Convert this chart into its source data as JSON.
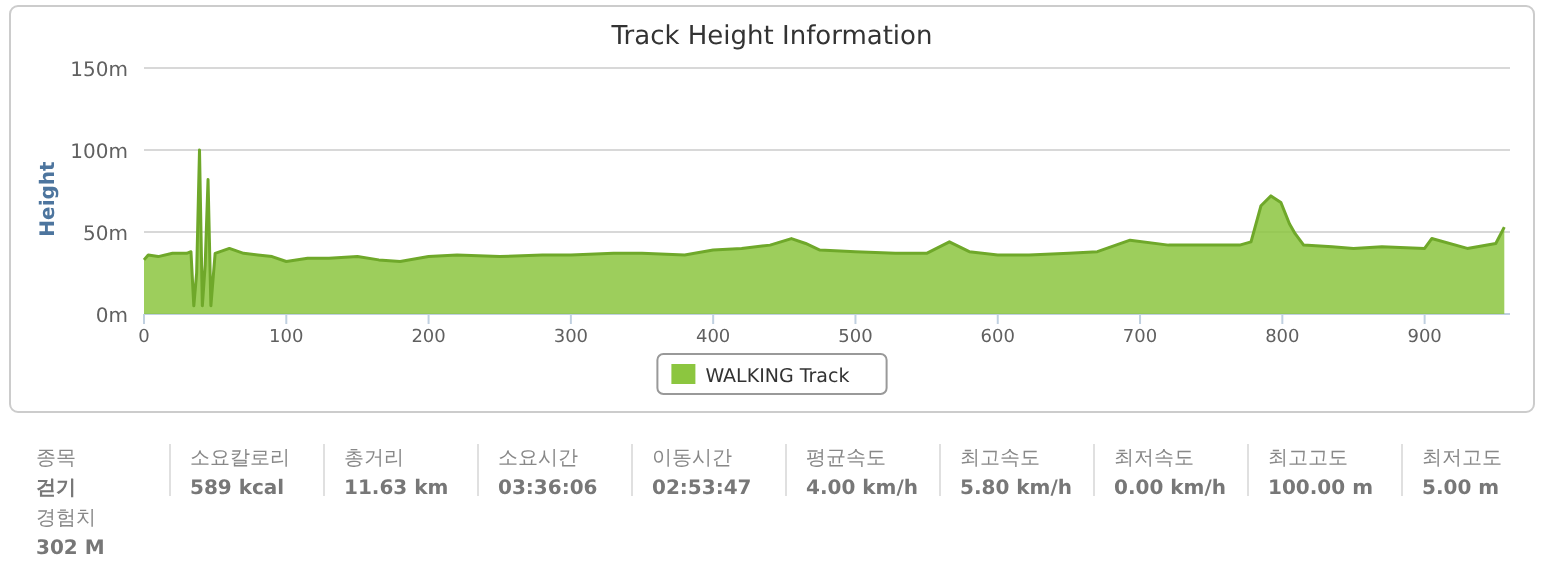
{
  "chart_data": {
    "type": "area",
    "title": "Track Height Information",
    "ylabel": "Height",
    "x": [
      0,
      3,
      10,
      20,
      30,
      33,
      35,
      37,
      39,
      41,
      43,
      45,
      47,
      50,
      60,
      70,
      80,
      90,
      100,
      115,
      130,
      150,
      165,
      180,
      200,
      220,
      250,
      280,
      300,
      330,
      350,
      380,
      400,
      420,
      440,
      455,
      465,
      475,
      500,
      528,
      550,
      566,
      580,
      600,
      622,
      650,
      670,
      693,
      720,
      750,
      770,
      778,
      785,
      792,
      799,
      805,
      809,
      815,
      835,
      850,
      870,
      900,
      905,
      930,
      950,
      956
    ],
    "series": [
      {
        "name": "WALKING Track",
        "color": "#8cc63f",
        "values": [
          33,
          36,
          35,
          37,
          37,
          38,
          5,
          25,
          100,
          5,
          30,
          82,
          5,
          37,
          40,
          37,
          36,
          35,
          32,
          34,
          34,
          35,
          33,
          32,
          35,
          36,
          35,
          36,
          36,
          37,
          37,
          36,
          39,
          40,
          42,
          46,
          43,
          39,
          38,
          37,
          37,
          44,
          38,
          36,
          36,
          37,
          38,
          45,
          42,
          42,
          42,
          44,
          66,
          72,
          68,
          55,
          49,
          42,
          41,
          40,
          41,
          40,
          46,
          40,
          43,
          53
        ]
      }
    ],
    "xlim": [
      0,
      960
    ],
    "xticks": [
      0,
      100,
      200,
      300,
      400,
      500,
      600,
      700,
      800,
      900
    ],
    "ylim": [
      0,
      150
    ],
    "yticks": [
      {
        "value": 0,
        "label": "0m"
      },
      {
        "value": 50,
        "label": "50m"
      },
      {
        "value": 100,
        "label": "100m"
      },
      {
        "value": 150,
        "label": "150m"
      }
    ],
    "grid": "y",
    "legend": "bottom",
    "annotations": [
      "종목",
      "걷기",
      "소요칼로리",
      "589 kcal",
      "총거리",
      "11.63 km",
      "소요시간",
      "03:36:06",
      "이동시간",
      "02:53:47",
      "평균속도",
      "4.00 km/h",
      "최고속도",
      "5.80 km/h",
      "최저속도",
      "0.00 km/h",
      "최고고도",
      "100.00 m",
      "최저고도",
      "5.00 m",
      "경험치",
      "302 M"
    ]
  }
}
